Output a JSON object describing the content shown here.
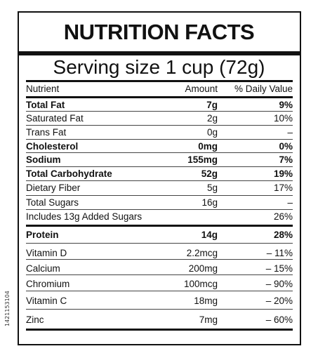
{
  "title": "NUTRITION FACTS",
  "serving": "Serving size 1 cup (72g)",
  "header": {
    "nutrient": "Nutrient",
    "amount": "Amount",
    "dv": "% Daily Value"
  },
  "rows": [
    {
      "name": "Total Fat",
      "amount": "7g",
      "dv": "9%",
      "bold": true
    },
    {
      "name": "Saturated Fat",
      "amount": "2g",
      "dv": "10%",
      "bold": false
    },
    {
      "name": "Trans Fat",
      "amount": "0g",
      "dv": "–",
      "bold": false
    },
    {
      "name": "Cholesterol",
      "amount": "0mg",
      "dv": "0%",
      "bold": true
    },
    {
      "name": "Sodium",
      "amount": "155mg",
      "dv": "7%",
      "bold": true
    },
    {
      "name": "Total Carbohydrate",
      "amount": "52g",
      "dv": "19%",
      "bold": true
    },
    {
      "name": "Dietary Fiber",
      "amount": "5g",
      "dv": "17%",
      "bold": false
    },
    {
      "name": "Total Sugars",
      "amount": "16g",
      "dv": "–",
      "bold": false
    },
    {
      "name": "Includes 13g Added Sugars",
      "amount": "",
      "dv": "26%",
      "bold": false
    },
    {
      "name": "Protein",
      "amount": "14g",
      "dv": "28%",
      "bold": true
    },
    {
      "name": "Vitamin D",
      "amount": "2.2mcg",
      "dv": "– 11%",
      "bold": false
    },
    {
      "name": "Calcium",
      "amount": "200mg",
      "dv": "– 15%",
      "bold": false
    },
    {
      "name": "Chromium",
      "amount": "100mcg",
      "dv": "– 90%",
      "bold": false
    },
    {
      "name": "Vitamin C",
      "amount": "18mg",
      "dv": "– 20%",
      "bold": false
    },
    {
      "name": "Zinc",
      "amount": "7mg",
      "dv": "– 60%",
      "bold": false
    }
  ],
  "stock_id": "1421153104"
}
